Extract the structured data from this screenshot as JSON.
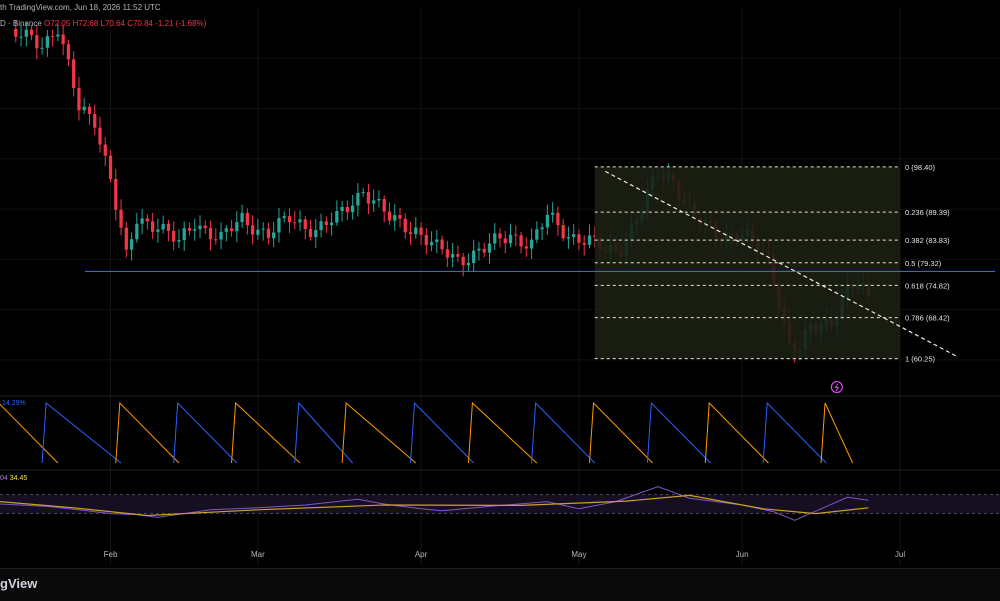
{
  "header": {
    "published": "th TradingView.com, Jun 18, 2026 11:52 UTC",
    "symbol": "D · Binance",
    "ohlc": "O72.05 H72.68 L70.64 C70.84 -1.21 (-1.68%)"
  },
  "indicators": {
    "aroon_label": "14.29%",
    "rsi_label_prefix": "04",
    "rsi_label_value": "34.45"
  },
  "footer": {
    "brand": "gView"
  },
  "colors": {
    "up": "#26a69a",
    "down": "#f23645",
    "support": "#3d5afe",
    "fib": "#e8e8d0",
    "aroon_up": "#ff9800",
    "aroon_down": "#2962ff",
    "rsi": "#7e57c2",
    "rsi_ma": "#c9a227"
  },
  "chart_data": {
    "type": "candlestick",
    "price_range": [
      56,
      130
    ],
    "months": [
      {
        "label": "Feb",
        "date": "2026-02-01"
      },
      {
        "label": "Mar",
        "date": "2026-03-01"
      },
      {
        "label": "Apr",
        "date": "2026-04-01"
      },
      {
        "label": "May",
        "date": "2026-05-01"
      },
      {
        "label": "Jun",
        "date": "2026-06-01"
      },
      {
        "label": "Jul",
        "date": "2026-07-01"
      }
    ],
    "date_range": [
      "2026-01-11",
      "2026-07-20"
    ],
    "support_level": 77.6,
    "fibonacci": {
      "start_date": "2026-05-04",
      "end_date": "2026-07-01",
      "levels": [
        {
          "ratio": "0",
          "price": 98.4,
          "label": "0 (98.40)"
        },
        {
          "ratio": "0.236",
          "price": 89.39,
          "label": "0.236 (89.39)"
        },
        {
          "ratio": "0.382",
          "price": 83.83,
          "label": "0.382 (83.83)"
        },
        {
          "ratio": "0.5",
          "price": 79.32,
          "label": "0.5 (79.32)"
        },
        {
          "ratio": "0.618",
          "price": 74.82,
          "label": "0.618 (74.82)"
        },
        {
          "ratio": "0.786",
          "price": 68.42,
          "label": "0.786 (68.42)"
        },
        {
          "ratio": "1",
          "price": 60.25,
          "label": "1 (60.25)"
        }
      ]
    },
    "trendline": [
      {
        "date": "2026-05-06",
        "price": 97.5
      },
      {
        "date": "2026-07-12",
        "price": 60.6
      }
    ],
    "alert_marker": {
      "date": "2026-06-19",
      "price": 54.6
    },
    "close_anchors": [
      [
        "2026-01-13",
        124.5
      ],
      [
        "2026-01-17",
        124.0
      ],
      [
        "2026-01-19",
        123.0
      ],
      [
        "2026-01-22",
        126.0
      ],
      [
        "2026-01-26",
        110.0
      ],
      [
        "2026-01-29",
        108.0
      ],
      [
        "2026-02-01",
        96.0
      ],
      [
        "2026-02-04",
        80.0
      ],
      [
        "2026-02-06",
        88.0
      ],
      [
        "2026-02-10",
        87.0
      ],
      [
        "2026-02-14",
        83.0
      ],
      [
        "2026-02-17",
        87.5
      ],
      [
        "2026-02-22",
        84.0
      ],
      [
        "2026-02-26",
        88.0
      ],
      [
        "2026-03-03",
        85.0
      ],
      [
        "2026-03-07",
        88.0
      ],
      [
        "2026-03-12",
        86.0
      ],
      [
        "2026-03-16",
        88.0
      ],
      [
        "2026-03-21",
        94.0
      ],
      [
        "2026-03-26",
        88.0
      ],
      [
        "2026-03-31",
        86.0
      ],
      [
        "2026-04-04",
        82.0
      ],
      [
        "2026-04-08",
        80.0
      ],
      [
        "2026-04-13",
        82.0
      ],
      [
        "2026-04-18",
        85.0
      ],
      [
        "2026-04-22",
        83.0
      ],
      [
        "2026-04-25",
        88.5
      ],
      [
        "2026-04-29",
        85.0
      ],
      [
        "2026-05-03",
        83.5
      ],
      [
        "2026-05-06",
        81.5
      ],
      [
        "2026-05-09",
        82.5
      ],
      [
        "2026-05-12",
        88.0
      ],
      [
        "2026-05-16",
        97.0
      ],
      [
        "2026-05-19",
        96.0
      ],
      [
        "2026-05-23",
        88.0
      ],
      [
        "2026-05-27",
        85.0
      ],
      [
        "2026-06-01",
        85.0
      ],
      [
        "2026-06-04",
        82.0
      ],
      [
        "2026-06-06",
        80.0
      ],
      [
        "2026-06-08",
        72.0
      ],
      [
        "2026-06-10",
        63.0
      ],
      [
        "2026-06-12",
        62.0
      ],
      [
        "2026-06-14",
        66.0
      ],
      [
        "2026-06-16",
        67.0
      ],
      [
        "2026-06-18",
        68.0
      ],
      [
        "2026-06-21",
        74.0
      ],
      [
        "2026-06-23",
        75.0
      ],
      [
        "2026-06-25",
        72.0
      ]
    ],
    "aroon_segments": [
      {
        "series": "up",
        "from": "2026-01-10",
        "to": "2026-01-22"
      },
      {
        "series": "down",
        "from": "2026-01-19",
        "to": "2026-02-03"
      },
      {
        "series": "up",
        "from": "2026-02-02",
        "to": "2026-02-14"
      },
      {
        "series": "down",
        "from": "2026-02-13",
        "to": "2026-02-25"
      },
      {
        "series": "up",
        "from": "2026-02-24",
        "to": "2026-03-09"
      },
      {
        "series": "down",
        "from": "2026-03-08",
        "to": "2026-03-19"
      },
      {
        "series": "up",
        "from": "2026-03-17",
        "to": "2026-03-31"
      },
      {
        "series": "down",
        "from": "2026-03-30",
        "to": "2026-04-11"
      },
      {
        "series": "up",
        "from": "2026-04-10",
        "to": "2026-04-23"
      },
      {
        "series": "down",
        "from": "2026-04-22",
        "to": "2026-05-04"
      },
      {
        "series": "up",
        "from": "2026-05-03",
        "to": "2026-05-15"
      },
      {
        "series": "down",
        "from": "2026-05-14",
        "to": "2026-05-26"
      },
      {
        "series": "up",
        "from": "2026-05-25",
        "to": "2026-06-06"
      },
      {
        "series": "down",
        "from": "2026-06-05",
        "to": "2026-06-17"
      },
      {
        "series": "up",
        "from": "2026-06-16",
        "to": "2026-06-22"
      }
    ],
    "rsi_range": [
      0,
      100
    ],
    "rsi_bands": [
      30,
      70
    ],
    "rsi": [
      [
        "2026-01-11",
        50
      ],
      [
        "2026-01-20",
        45
      ],
      [
        "2026-01-26",
        38
      ],
      [
        "2026-02-01",
        30
      ],
      [
        "2026-02-06",
        28
      ],
      [
        "2026-02-10",
        22
      ],
      [
        "2026-02-20",
        38
      ],
      [
        "2026-03-01",
        42
      ],
      [
        "2026-03-10",
        48
      ],
      [
        "2026-03-20",
        60
      ],
      [
        "2026-03-25",
        50
      ],
      [
        "2026-04-01",
        40
      ],
      [
        "2026-04-05",
        36
      ],
      [
        "2026-04-15",
        46
      ],
      [
        "2026-04-25",
        55
      ],
      [
        "2026-05-01",
        40
      ],
      [
        "2026-05-08",
        55
      ],
      [
        "2026-05-16",
        86
      ],
      [
        "2026-05-22",
        62
      ],
      [
        "2026-06-01",
        48
      ],
      [
        "2026-06-07",
        34
      ],
      [
        "2026-06-11",
        16
      ],
      [
        "2026-06-16",
        40
      ],
      [
        "2026-06-21",
        64
      ],
      [
        "2026-06-25",
        58
      ]
    ],
    "rsi_ma": [
      [
        "2026-01-11",
        55
      ],
      [
        "2026-01-25",
        42
      ],
      [
        "2026-02-08",
        26
      ],
      [
        "2026-03-01",
        38
      ],
      [
        "2026-03-25",
        48
      ],
      [
        "2026-04-20",
        47
      ],
      [
        "2026-05-10",
        56
      ],
      [
        "2026-05-22",
        68
      ],
      [
        "2026-06-05",
        40
      ],
      [
        "2026-06-15",
        30
      ],
      [
        "2026-06-25",
        42
      ]
    ]
  }
}
